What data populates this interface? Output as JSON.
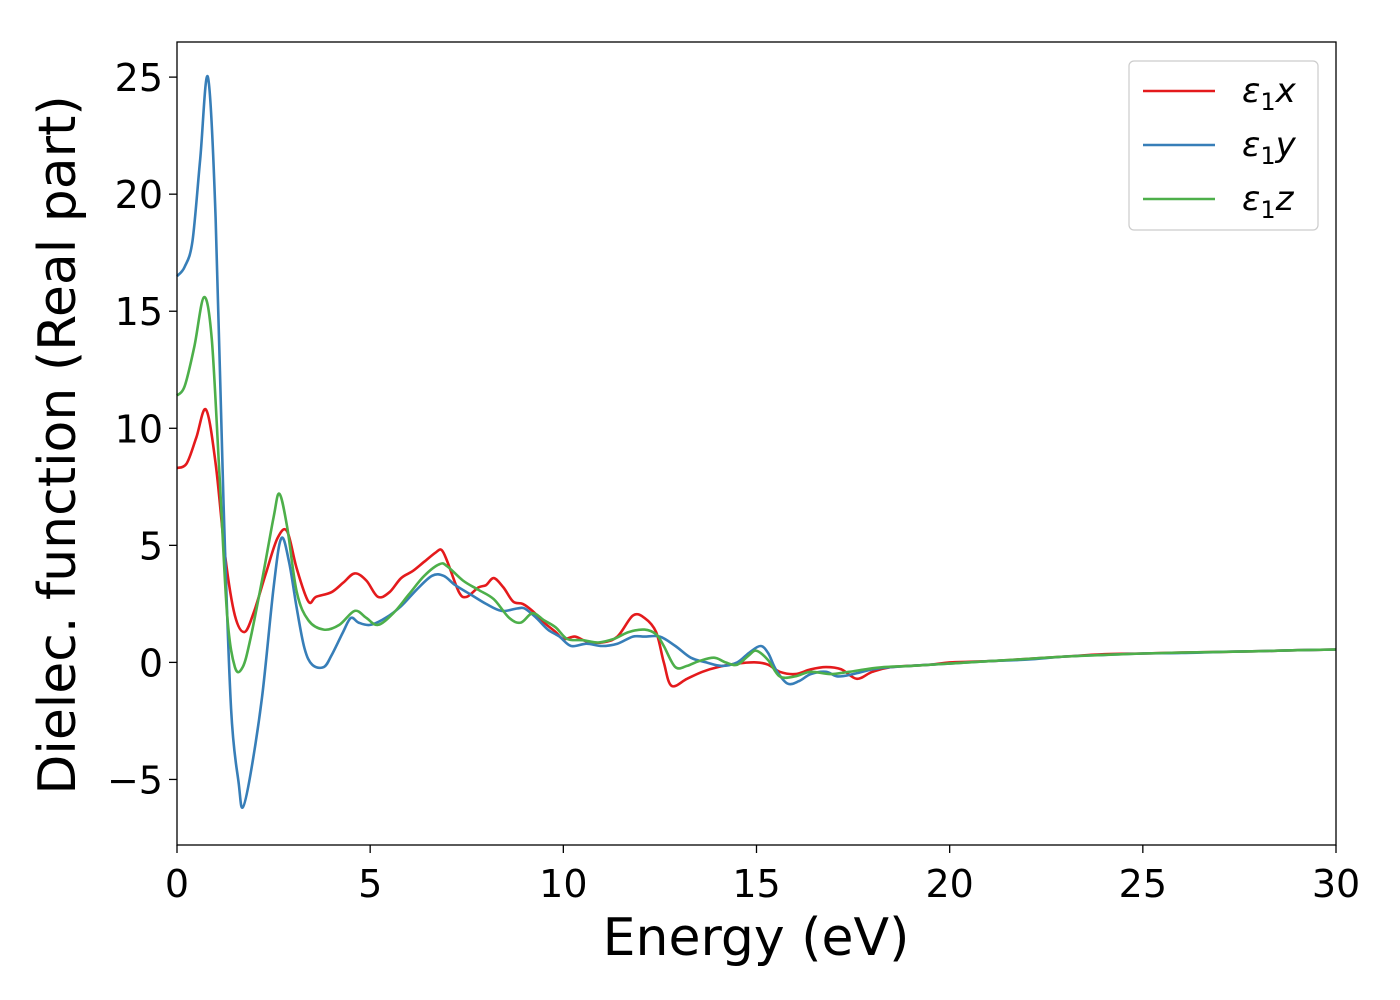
{
  "chart_data": {
    "type": "line",
    "xlabel": "Energy (eV)",
    "ylabel": "Dielec. function (Real part)",
    "xlim": [
      0,
      30
    ],
    "ylim": [
      -7.8,
      26.5
    ],
    "xticks": [
      0,
      5,
      10,
      15,
      20,
      25,
      30
    ],
    "yticks": [
      -5,
      0,
      5,
      10,
      15,
      20,
      25
    ],
    "xtick_labels": [
      "0",
      "5",
      "10",
      "15",
      "20",
      "25",
      "30"
    ],
    "ytick_labels": [
      "−5",
      "0",
      "5",
      "10",
      "15",
      "20",
      "25"
    ],
    "grid": false,
    "legend_position": "top-right",
    "series": [
      {
        "name": "ε1x",
        "legend_main": "ε",
        "legend_sub": "1",
        "legend_var": "x",
        "color": "#e41a1c",
        "points": [
          [
            0,
            8.3
          ],
          [
            0.25,
            8.5
          ],
          [
            0.5,
            9.6
          ],
          [
            0.75,
            10.8
          ],
          [
            1.0,
            8.5
          ],
          [
            1.25,
            4.5
          ],
          [
            1.5,
            2.0
          ],
          [
            1.75,
            1.3
          ],
          [
            2.0,
            2.2
          ],
          [
            2.3,
            3.8
          ],
          [
            2.6,
            5.3
          ],
          [
            2.85,
            5.6
          ],
          [
            3.1,
            4.0
          ],
          [
            3.4,
            2.6
          ],
          [
            3.6,
            2.8
          ],
          [
            4.0,
            3.0
          ],
          [
            4.3,
            3.4
          ],
          [
            4.6,
            3.8
          ],
          [
            4.9,
            3.5
          ],
          [
            5.2,
            2.8
          ],
          [
            5.5,
            3.0
          ],
          [
            5.8,
            3.6
          ],
          [
            6.1,
            3.9
          ],
          [
            6.4,
            4.3
          ],
          [
            6.7,
            4.7
          ],
          [
            6.85,
            4.8
          ],
          [
            7.0,
            4.3
          ],
          [
            7.3,
            3.0
          ],
          [
            7.5,
            2.8
          ],
          [
            7.8,
            3.2
          ],
          [
            8.0,
            3.3
          ],
          [
            8.2,
            3.6
          ],
          [
            8.45,
            3.2
          ],
          [
            8.7,
            2.6
          ],
          [
            8.95,
            2.5
          ],
          [
            9.2,
            2.2
          ],
          [
            9.5,
            1.7
          ],
          [
            9.8,
            1.3
          ],
          [
            10.0,
            1.0
          ],
          [
            10.3,
            1.1
          ],
          [
            10.6,
            0.9
          ],
          [
            11.0,
            0.85
          ],
          [
            11.4,
            1.1
          ],
          [
            11.8,
            2.0
          ],
          [
            12.1,
            1.9
          ],
          [
            12.4,
            1.3
          ],
          [
            12.6,
            0.0
          ],
          [
            12.8,
            -1.0
          ],
          [
            13.2,
            -0.7
          ],
          [
            13.6,
            -0.4
          ],
          [
            14.0,
            -0.2
          ],
          [
            14.5,
            -0.05
          ],
          [
            15.0,
            0.0
          ],
          [
            15.3,
            -0.1
          ],
          [
            15.6,
            -0.4
          ],
          [
            16.0,
            -0.5
          ],
          [
            16.4,
            -0.3
          ],
          [
            16.8,
            -0.2
          ],
          [
            17.2,
            -0.3
          ],
          [
            17.6,
            -0.7
          ],
          [
            18.0,
            -0.4
          ],
          [
            18.5,
            -0.2
          ],
          [
            19.5,
            -0.1
          ],
          [
            20,
            0.0
          ],
          [
            21,
            0.05
          ],
          [
            22,
            0.15
          ],
          [
            23,
            0.25
          ],
          [
            24,
            0.35
          ],
          [
            25,
            0.38
          ],
          [
            26,
            0.42
          ],
          [
            27,
            0.45
          ],
          [
            28,
            0.48
          ],
          [
            29,
            0.52
          ],
          [
            30,
            0.55
          ]
        ]
      },
      {
        "name": "ε1y",
        "legend_main": "ε",
        "legend_sub": "1",
        "legend_var": "y",
        "color": "#377eb8",
        "points": [
          [
            0,
            16.5
          ],
          [
            0.2,
            16.9
          ],
          [
            0.4,
            18.0
          ],
          [
            0.6,
            21.5
          ],
          [
            0.8,
            25.0
          ],
          [
            1.0,
            19.0
          ],
          [
            1.2,
            7.0
          ],
          [
            1.4,
            -2.0
          ],
          [
            1.6,
            -5.2
          ],
          [
            1.7,
            -6.2
          ],
          [
            1.9,
            -4.8
          ],
          [
            2.2,
            -1.5
          ],
          [
            2.5,
            3.2
          ],
          [
            2.7,
            5.3
          ],
          [
            2.9,
            4.3
          ],
          [
            3.1,
            2.3
          ],
          [
            3.3,
            0.6
          ],
          [
            3.5,
            -0.1
          ],
          [
            3.8,
            -0.2
          ],
          [
            4.0,
            0.3
          ],
          [
            4.3,
            1.3
          ],
          [
            4.5,
            1.9
          ],
          [
            4.7,
            1.7
          ],
          [
            5.0,
            1.6
          ],
          [
            5.4,
            1.9
          ],
          [
            5.8,
            2.4
          ],
          [
            6.2,
            3.1
          ],
          [
            6.6,
            3.7
          ],
          [
            6.9,
            3.7
          ],
          [
            7.2,
            3.3
          ],
          [
            7.6,
            2.9
          ],
          [
            8.0,
            2.5
          ],
          [
            8.4,
            2.2
          ],
          [
            8.8,
            2.3
          ],
          [
            9.0,
            2.3
          ],
          [
            9.3,
            1.9
          ],
          [
            9.6,
            1.4
          ],
          [
            9.9,
            1.1
          ],
          [
            10.2,
            0.7
          ],
          [
            10.6,
            0.8
          ],
          [
            11.0,
            0.7
          ],
          [
            11.4,
            0.8
          ],
          [
            11.8,
            1.1
          ],
          [
            12.1,
            1.1
          ],
          [
            12.5,
            1.1
          ],
          [
            12.9,
            0.7
          ],
          [
            13.3,
            0.2
          ],
          [
            13.7,
            0.0
          ],
          [
            14.1,
            -0.15
          ],
          [
            14.5,
            0.0
          ],
          [
            14.8,
            0.4
          ],
          [
            15.1,
            0.7
          ],
          [
            15.3,
            0.4
          ],
          [
            15.5,
            -0.3
          ],
          [
            15.8,
            -0.9
          ],
          [
            16.1,
            -0.8
          ],
          [
            16.4,
            -0.5
          ],
          [
            16.8,
            -0.4
          ],
          [
            17.1,
            -0.6
          ],
          [
            17.5,
            -0.5
          ],
          [
            18.0,
            -0.3
          ],
          [
            18.5,
            -0.2
          ],
          [
            19.5,
            -0.1
          ],
          [
            20,
            -0.05
          ],
          [
            21,
            0.05
          ],
          [
            22,
            0.12
          ],
          [
            23,
            0.25
          ],
          [
            24,
            0.32
          ],
          [
            25,
            0.38
          ],
          [
            26,
            0.4
          ],
          [
            27,
            0.45
          ],
          [
            28,
            0.48
          ],
          [
            29,
            0.52
          ],
          [
            30,
            0.55
          ]
        ]
      },
      {
        "name": "ε1z",
        "legend_main": "ε",
        "legend_sub": "1",
        "legend_var": "z",
        "color": "#4daf4a",
        "points": [
          [
            0,
            11.4
          ],
          [
            0.2,
            11.8
          ],
          [
            0.45,
            13.5
          ],
          [
            0.7,
            15.6
          ],
          [
            0.9,
            13.8
          ],
          [
            1.1,
            8.0
          ],
          [
            1.3,
            2.0
          ],
          [
            1.5,
            -0.2
          ],
          [
            1.7,
            -0.2
          ],
          [
            1.9,
            1.0
          ],
          [
            2.2,
            3.5
          ],
          [
            2.5,
            6.2
          ],
          [
            2.65,
            7.2
          ],
          [
            2.85,
            5.8
          ],
          [
            3.1,
            3.0
          ],
          [
            3.4,
            1.8
          ],
          [
            3.8,
            1.4
          ],
          [
            4.2,
            1.6
          ],
          [
            4.6,
            2.2
          ],
          [
            4.9,
            1.9
          ],
          [
            5.2,
            1.6
          ],
          [
            5.6,
            2.1
          ],
          [
            6.0,
            2.9
          ],
          [
            6.4,
            3.7
          ],
          [
            6.8,
            4.2
          ],
          [
            7.0,
            4.1
          ],
          [
            7.4,
            3.5
          ],
          [
            7.8,
            3.1
          ],
          [
            8.2,
            2.7
          ],
          [
            8.6,
            1.9
          ],
          [
            8.9,
            1.7
          ],
          [
            9.2,
            2.1
          ],
          [
            9.5,
            1.8
          ],
          [
            9.8,
            1.5
          ],
          [
            10.1,
            1.0
          ],
          [
            10.5,
            0.95
          ],
          [
            10.9,
            0.85
          ],
          [
            11.3,
            1.0
          ],
          [
            11.7,
            1.3
          ],
          [
            12.1,
            1.4
          ],
          [
            12.4,
            1.2
          ],
          [
            12.6,
            0.7
          ],
          [
            12.9,
            -0.2
          ],
          [
            13.2,
            -0.15
          ],
          [
            13.5,
            0.05
          ],
          [
            13.9,
            0.2
          ],
          [
            14.2,
            0.0
          ],
          [
            14.5,
            -0.1
          ],
          [
            14.8,
            0.3
          ],
          [
            15.0,
            0.5
          ],
          [
            15.3,
            0.1
          ],
          [
            15.6,
            -0.6
          ],
          [
            16.0,
            -0.6
          ],
          [
            16.4,
            -0.4
          ],
          [
            16.9,
            -0.5
          ],
          [
            17.4,
            -0.4
          ],
          [
            17.8,
            -0.3
          ],
          [
            18.3,
            -0.2
          ],
          [
            19,
            -0.15
          ],
          [
            20,
            -0.05
          ],
          [
            21,
            0.05
          ],
          [
            22,
            0.15
          ],
          [
            23,
            0.25
          ],
          [
            24,
            0.32
          ],
          [
            25,
            0.38
          ],
          [
            26,
            0.42
          ],
          [
            27,
            0.45
          ],
          [
            28,
            0.48
          ],
          [
            29,
            0.52
          ],
          [
            30,
            0.55
          ]
        ]
      }
    ]
  }
}
